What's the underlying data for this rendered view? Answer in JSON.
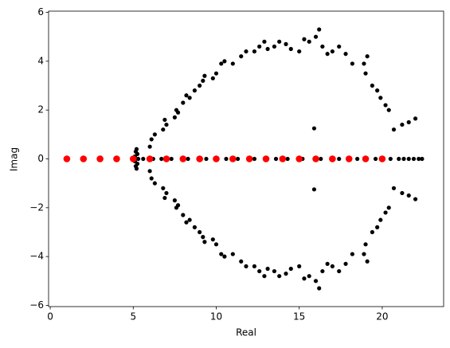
{
  "chart_data": {
    "type": "scatter",
    "xlabel": "Real",
    "ylabel": "Imag",
    "xlim": [
      -0.1,
      23.7
    ],
    "ylim": [
      -6.05,
      6.05
    ],
    "xticks": [
      0,
      5,
      10,
      15,
      20
    ],
    "yticks": [
      {
        "value": -6,
        "label": "−6"
      },
      {
        "value": -4,
        "label": "−4"
      },
      {
        "value": -2,
        "label": "−2"
      },
      0,
      2,
      4,
      6
    ],
    "series": [
      {
        "color": "#000000",
        "x": [
          5.1,
          5.15,
          5.2,
          5.25,
          6.0,
          6.1,
          6.3,
          6.8,
          7.0,
          6.9,
          7.5,
          7.6,
          7.7,
          8.0,
          8.2,
          8.4,
          8.7,
          9.0,
          9.2,
          9.3,
          9.8,
          10.0,
          10.3,
          10.5,
          11.0,
          11.5,
          11.8,
          12.3,
          12.6,
          12.9,
          13.1,
          13.5,
          13.8,
          14.2,
          14.5,
          15.0,
          15.3,
          15.6,
          16.0,
          16.2,
          16.4,
          16.7,
          17.0,
          17.4,
          17.8,
          18.2,
          18.9,
          19.1,
          19.0,
          19.4,
          19.7,
          19.9,
          20.2,
          20.4,
          20.7,
          21.2,
          21.6,
          22.0,
          15.9,
          5.1,
          5.15,
          5.2,
          5.25,
          6.0,
          6.1,
          6.3,
          6.8,
          7.0,
          6.9,
          7.5,
          7.6,
          7.7,
          8.0,
          8.2,
          8.4,
          8.7,
          9.0,
          9.2,
          9.3,
          9.8,
          10.0,
          10.3,
          10.5,
          11.0,
          11.5,
          11.8,
          12.3,
          12.6,
          12.9,
          13.1,
          13.5,
          13.8,
          14.2,
          14.5,
          15.0,
          15.3,
          15.6,
          16.0,
          16.2,
          16.4,
          16.7,
          17.0,
          17.4,
          17.8,
          18.2,
          18.9,
          19.1,
          19.0,
          19.4,
          19.7,
          19.9,
          20.2,
          20.4,
          20.7,
          21.2,
          21.6,
          22.0,
          15.9,
          5.0,
          5.3,
          5.6,
          6.2,
          6.7,
          7.3,
          8.3,
          9.4,
          10.6,
          11.3,
          12.3,
          13.6,
          14.3,
          15.2,
          16.3,
          17.4,
          18.5,
          19.6,
          20.5,
          21.0,
          21.3,
          21.6,
          21.9,
          22.2,
          22.4
        ],
        "y": [
          0.1,
          0.3,
          0.4,
          0.2,
          0.5,
          0.8,
          1.0,
          1.2,
          1.4,
          1.6,
          1.7,
          2.0,
          1.9,
          2.3,
          2.6,
          2.5,
          2.8,
          3.0,
          3.2,
          3.4,
          3.3,
          3.5,
          3.9,
          4.0,
          3.9,
          4.2,
          4.4,
          4.4,
          4.6,
          4.8,
          4.5,
          4.6,
          4.8,
          4.7,
          4.5,
          4.4,
          4.9,
          4.8,
          5.0,
          5.3,
          4.6,
          4.3,
          4.4,
          4.6,
          4.3,
          3.9,
          3.9,
          4.2,
          3.5,
          3.0,
          2.8,
          2.5,
          2.2,
          2.0,
          1.2,
          1.4,
          1.5,
          1.65,
          1.25,
          -0.1,
          -0.3,
          -0.4,
          -0.2,
          -0.5,
          -0.8,
          -1.0,
          -1.2,
          -1.4,
          -1.6,
          -1.7,
          -2.0,
          -1.9,
          -2.3,
          -2.6,
          -2.5,
          -2.8,
          -3.0,
          -3.2,
          -3.4,
          -3.3,
          -3.5,
          -3.9,
          -4.0,
          -3.9,
          -4.2,
          -4.4,
          -4.4,
          -4.6,
          -4.8,
          -4.5,
          -4.6,
          -4.8,
          -4.7,
          -4.5,
          -4.4,
          -4.9,
          -4.8,
          -5.0,
          -5.3,
          -4.6,
          -4.3,
          -4.4,
          -4.6,
          -4.3,
          -3.9,
          -3.9,
          -4.2,
          -3.5,
          -3.0,
          -2.8,
          -2.5,
          -2.2,
          -2.0,
          -1.2,
          -1.4,
          -1.5,
          -1.65,
          -1.25,
          0,
          0,
          0,
          0,
          0,
          0,
          0,
          0,
          0,
          0,
          0,
          0,
          0,
          0,
          0,
          0,
          0,
          0,
          0,
          0,
          0,
          0,
          0,
          0,
          0
        ]
      },
      {
        "color": "#ff0000",
        "x": [
          1,
          2,
          3,
          4,
          5,
          6,
          7,
          8,
          9,
          10,
          11,
          12,
          13,
          14,
          15,
          16,
          17,
          18,
          19,
          20
        ],
        "y": [
          0,
          0,
          0,
          0,
          0,
          0,
          0,
          0,
          0,
          0,
          0,
          0,
          0,
          0,
          0,
          0,
          0,
          0,
          0,
          0
        ]
      }
    ]
  }
}
